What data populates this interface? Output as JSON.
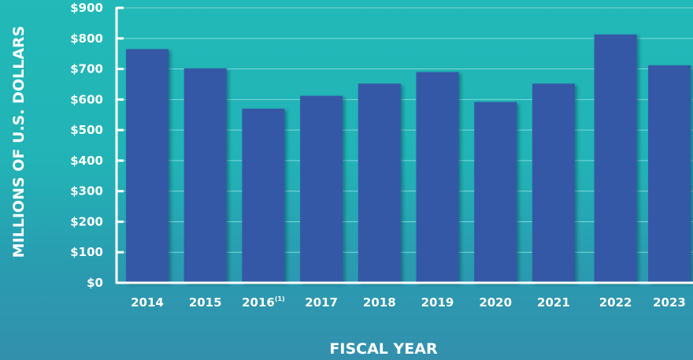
{
  "chart_data": {
    "type": "bar",
    "categories": [
      "2014",
      "2015",
      "2016",
      "2017",
      "2018",
      "2019",
      "2020",
      "2021",
      "2022",
      "2023"
    ],
    "category_footnotes": [
      "",
      "",
      "(1)",
      "",
      "",
      "",
      "",
      "",
      "",
      ""
    ],
    "values": [
      765,
      702,
      570,
      612,
      652,
      690,
      592,
      652,
      813,
      712
    ],
    "xlabel": "FISCAL YEAR",
    "ylabel": "MILLIONS OF U.S. DOLLARS",
    "ylim": [
      0,
      900
    ],
    "yticks": [
      0,
      100,
      200,
      300,
      400,
      500,
      600,
      700,
      800,
      900
    ],
    "ytick_labels": [
      "$0",
      "$100",
      "$200",
      "$300",
      "$400",
      "$500",
      "$600",
      "$700",
      "$800",
      "$900"
    ],
    "grid": true,
    "colors": {
      "bar": "#3659a6",
      "axis": "#ffffff",
      "grid": "#7fd8d6"
    }
  }
}
